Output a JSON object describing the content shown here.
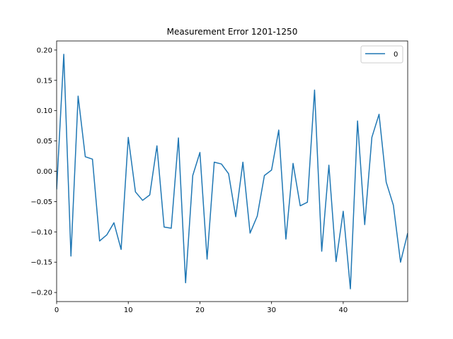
{
  "chart_data": {
    "type": "line",
    "title": "Measurement Error 1201-1250",
    "xlabel": "",
    "ylabel": "",
    "xlim": [
      0,
      49
    ],
    "ylim": [
      -0.215,
      0.215
    ],
    "xticks": [
      0,
      10,
      20,
      30,
      40
    ],
    "yticks": [
      -0.2,
      -0.15,
      -0.1,
      -0.05,
      0.0,
      0.05,
      0.1,
      0.15,
      0.2
    ],
    "ytick_labels": [
      "−0.20",
      "−0.15",
      "−0.10",
      "−0.05",
      "0.00",
      "0.05",
      "0.10",
      "0.15",
      "0.20"
    ],
    "grid": false,
    "legend_position": "top-right",
    "series": [
      {
        "name": "0",
        "color": "#1f77b4",
        "x": [
          0,
          1,
          2,
          3,
          4,
          5,
          6,
          7,
          8,
          9,
          10,
          11,
          12,
          13,
          14,
          15,
          16,
          17,
          18,
          19,
          20,
          21,
          22,
          23,
          24,
          25,
          26,
          27,
          28,
          29,
          30,
          31,
          32,
          33,
          34,
          35,
          36,
          37,
          38,
          39,
          40,
          41,
          42,
          43,
          44,
          45,
          46,
          47,
          48,
          49
        ],
        "values": [
          -0.03,
          0.193,
          -0.14,
          0.124,
          0.024,
          0.02,
          -0.115,
          -0.105,
          -0.085,
          -0.129,
          0.056,
          -0.034,
          -0.048,
          -0.039,
          0.042,
          -0.092,
          -0.094,
          0.055,
          -0.184,
          -0.007,
          0.031,
          -0.145,
          0.015,
          0.012,
          -0.004,
          -0.075,
          0.015,
          -0.102,
          -0.074,
          -0.007,
          0.002,
          0.068,
          -0.112,
          0.013,
          -0.057,
          -0.051,
          0.134,
          -0.132,
          0.01,
          -0.149,
          -0.066,
          -0.194,
          0.083,
          -0.088,
          0.056,
          0.094,
          -0.018,
          -0.056,
          -0.15,
          -0.102
        ]
      }
    ]
  }
}
